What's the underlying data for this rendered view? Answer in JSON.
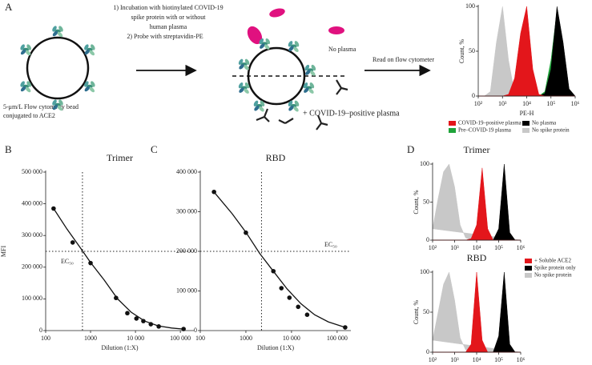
{
  "panel_a": {
    "label": "A",
    "steps": [
      "1) Incubation with biotinylated COVID-19",
      "spike protein with or without",
      "human plasma",
      "2) Probe with streptavidin-PE"
    ],
    "bead_label": [
      "5-μm/L Flow cytometry bead",
      "conjugated to ACE2"
    ],
    "no_plasma": "No plasma",
    "positive_plasma": "+ COVID-19–positive plasma",
    "read": "Read on flow cytometer"
  },
  "chart_data": [
    {
      "type": "area",
      "xlabel": "PE-H",
      "ylabel": "Count, %",
      "xscale": "log",
      "x": [
        100,
        178,
        316,
        562,
        1000,
        1778,
        3162,
        5623,
        10000,
        17783,
        31623,
        56234,
        100000,
        177828,
        316228,
        562341,
        1000000
      ],
      "xlim": [
        100,
        1000000
      ],
      "xticks": [
        {
          "value": 100,
          "label": "10²"
        },
        {
          "value": 1000,
          "label": "10³"
        },
        {
          "value": 10000,
          "label": "10⁴"
        },
        {
          "value": 100000,
          "label": "10⁵"
        },
        {
          "value": 1000000,
          "label": "10⁶"
        }
      ],
      "ylim": [
        0,
        100
      ],
      "yticks": [
        0,
        50,
        100
      ],
      "series": [
        {
          "name": "COVID-19–positive plasma",
          "color": "#e3161b",
          "values": [
            0,
            0,
            0,
            0,
            0,
            2,
            20,
            70,
            100,
            30,
            2,
            0,
            0,
            0,
            0,
            0,
            0
          ]
        },
        {
          "name": "No plasma",
          "color": "#000000",
          "values": [
            0,
            0,
            0,
            0,
            0,
            0,
            0,
            0,
            0,
            0,
            0,
            3,
            30,
            100,
            60,
            8,
            0
          ]
        },
        {
          "name": "Pre–COVID-19 plasma",
          "color": "#1fa33a",
          "values": [
            0,
            0,
            0,
            0,
            0,
            0,
            0,
            0,
            0,
            0,
            0,
            5,
            40,
            95,
            50,
            5,
            0
          ]
        },
        {
          "name": "No spike protein",
          "color": "#c8c8c8",
          "values": [
            0,
            0,
            5,
            60,
            100,
            40,
            3,
            0,
            0,
            0,
            0,
            0,
            0,
            0,
            0,
            0,
            0
          ]
        }
      ]
    },
    {
      "type": "scatter",
      "panel": "B",
      "title": "Trimer",
      "xlabel": "Dilution (1:X)",
      "ylabel": "MFI",
      "xscale": "log",
      "xlim": [
        100,
        200000
      ],
      "xticks": [
        100,
        1000,
        {
          "value": 10000,
          "label": "10 000"
        },
        {
          "value": 100000,
          "label": "100 000"
        }
      ],
      "ylim": [
        0,
        500000
      ],
      "yticks": [
        0,
        {
          "value": 100000,
          "label": "100 000"
        },
        {
          "value": 200000,
          "label": "200 000"
        },
        {
          "value": 300000,
          "label": "300 000"
        },
        {
          "value": 400000,
          "label": "400 000"
        },
        {
          "value": 500000,
          "label": "500 000"
        }
      ],
      "points": {
        "x": [
          150,
          400,
          1000,
          3700,
          6600,
          10500,
          15000,
          22000,
          33000,
          118000
        ],
        "values": [
          385000,
          278000,
          213000,
          103000,
          55000,
          38000,
          30000,
          20000,
          13000,
          5000
        ]
      },
      "fit": {
        "x": [
          150,
          300,
          600,
          1000,
          2000,
          4000,
          8000,
          16000,
          32000,
          64000,
          130000
        ],
        "values": [
          385000,
          320000,
          260000,
          215000,
          160000,
          100000,
          58000,
          30000,
          15000,
          8000,
          4000
        ]
      },
      "ref_x": 660,
      "ref_y": 250000,
      "annotation": "EC₅₀"
    },
    {
      "type": "scatter",
      "panel": "C",
      "title": "RBD",
      "xlabel": "Dilution (1:X)",
      "xscale": "log",
      "xlim": [
        100,
        200000
      ],
      "xticks": [
        100,
        1000,
        {
          "value": 10000,
          "label": "10 000"
        },
        {
          "value": 100000,
          "label": "100 000"
        }
      ],
      "ylim": [
        0,
        400000
      ],
      "yticks": [
        0,
        {
          "value": 100000,
          "label": "100 000"
        },
        {
          "value": 200000,
          "label": "200 000"
        },
        {
          "value": 300000,
          "label": "300 000"
        },
        {
          "value": 400000,
          "label": "400 000"
        }
      ],
      "points": {
        "x": [
          200,
          1000,
          4000,
          6000,
          9000,
          14000,
          22000,
          150000
        ],
        "values": [
          350000,
          247000,
          150000,
          107000,
          83000,
          60000,
          40000,
          8000
        ]
      },
      "fit": {
        "x": [
          200,
          500,
          1000,
          2000,
          4000,
          8000,
          16000,
          32000,
          64000,
          150000
        ],
        "values": [
          350000,
          295000,
          248000,
          195000,
          150000,
          105000,
          68000,
          40000,
          22000,
          8000
        ]
      },
      "ref_x": 2200,
      "ref_y": 200000,
      "annotation": "EC₅₀"
    },
    {
      "type": "area",
      "panel": "D",
      "title": "Trimer",
      "ylabel": "Count, %",
      "xscale": "log",
      "x": [
        100,
        178,
        316,
        562,
        1000,
        1778,
        3162,
        5623,
        10000,
        17783,
        31623,
        56234,
        100000,
        177828,
        316228,
        562341,
        1000000
      ],
      "xlim": [
        100,
        1000000
      ],
      "xticks": [
        {
          "value": 100,
          "label": "10²"
        },
        {
          "value": 1000,
          "label": "10³"
        },
        {
          "value": 10000,
          "label": "10⁴"
        },
        {
          "value": 100000,
          "label": "10⁵"
        },
        {
          "value": 1000000,
          "label": "10⁶"
        }
      ],
      "ylim": [
        0,
        100
      ],
      "yticks": [
        0,
        50,
        100
      ],
      "series": [
        {
          "color": "#e3161b",
          "values": [
            0,
            0,
            0,
            0,
            0,
            0,
            0,
            2,
            20,
            95,
            15,
            0,
            0,
            0,
            0,
            0,
            0
          ]
        },
        {
          "color": "#000000",
          "values": [
            0,
            0,
            0,
            0,
            0,
            0,
            0,
            0,
            0,
            0,
            0,
            0,
            15,
            100,
            10,
            0,
            0
          ]
        },
        {
          "color": "#c8c8c8",
          "values": [
            15,
            55,
            90,
            100,
            70,
            20,
            3,
            0,
            0,
            0,
            0,
            0,
            0,
            0,
            0,
            0,
            0
          ]
        }
      ]
    },
    {
      "type": "area",
      "title": "RBD",
      "ylabel": "Count, %",
      "xscale": "log",
      "x": [
        100,
        178,
        316,
        562,
        1000,
        1778,
        3162,
        5623,
        10000,
        17783,
        31623,
        56234,
        100000,
        177828,
        316228,
        562341,
        1000000
      ],
      "xlim": [
        100,
        1000000
      ],
      "xticks": [
        {
          "value": 100,
          "label": "10²"
        },
        {
          "value": 1000,
          "label": "10³"
        },
        {
          "value": 10000,
          "label": "10⁴"
        },
        {
          "value": 100000,
          "label": "10⁵"
        },
        {
          "value": 1000000,
          "label": "10⁶"
        }
      ],
      "ylim": [
        0,
        100
      ],
      "yticks": [
        0,
        50,
        100
      ],
      "series": [
        {
          "name": "+ Soluble ACE2",
          "color": "#e3161b",
          "values": [
            0,
            0,
            0,
            0,
            0,
            0,
            0,
            10,
            100,
            15,
            0,
            0,
            0,
            0,
            0,
            0,
            0
          ]
        },
        {
          "name": "Spike protein only",
          "color": "#000000",
          "values": [
            0,
            0,
            0,
            0,
            0,
            0,
            0,
            0,
            0,
            0,
            0,
            0,
            20,
            100,
            10,
            0,
            0
          ]
        },
        {
          "name": "No spike protein",
          "color": "#c8c8c8",
          "values": [
            15,
            50,
            85,
            100,
            65,
            18,
            3,
            0,
            0,
            0,
            0,
            0,
            0,
            0,
            0,
            0,
            0
          ]
        }
      ]
    }
  ]
}
